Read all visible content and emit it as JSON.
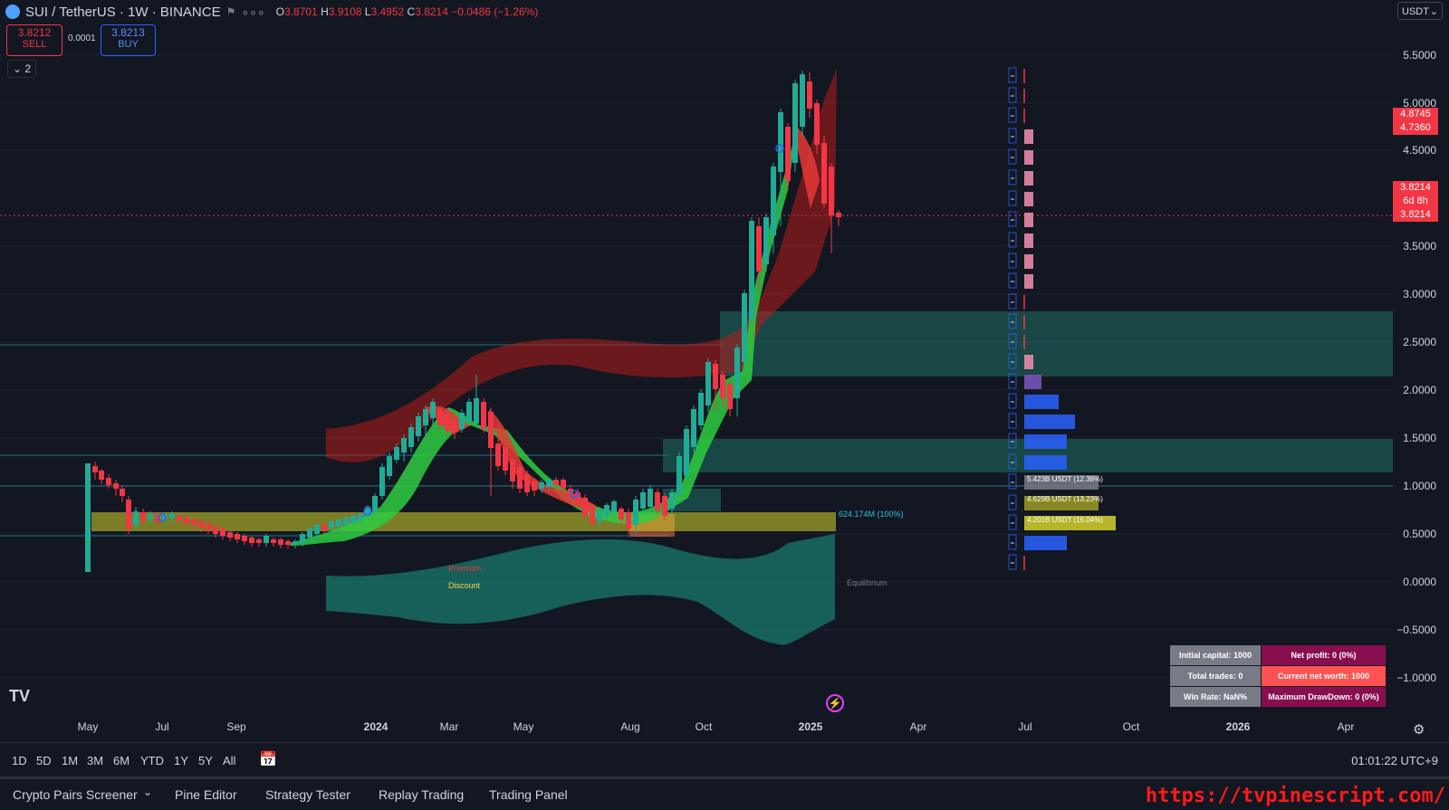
{
  "header": {
    "symbol": "SUI / TetherUS · 1W · BINANCE",
    "open_label": "O",
    "open": "3.8701",
    "high_label": "H",
    "high": "3.9108",
    "low_label": "L",
    "low": "3.4952",
    "close_label": "C",
    "close": "3.8214",
    "change": "−0.0486 (−1.26%)"
  },
  "trade": {
    "sell_price": "3.8212",
    "sell_label": "SELL",
    "spread": "0.0001",
    "buy_price": "3.8213",
    "buy_label": "BUY"
  },
  "collapse_count": "2",
  "currency": "USDT",
  "price_scale": [
    "5.5000",
    "5.0000",
    "4.5000",
    "3.5000",
    "3.0000",
    "2.5000",
    "2.0000",
    "1.5000",
    "1.0000",
    "0.5000",
    "0.0000",
    "−0.5000",
    "−1.0000"
  ],
  "price_tags": {
    "tag1": "4.8745",
    "tag2": "4.7360",
    "current": "3.8214",
    "countdown": "6d 8h",
    "current2": "3.8214"
  },
  "x_axis": [
    "May",
    "Jul",
    "Sep",
    "2024",
    "Mar",
    "May",
    "Aug",
    "Oct",
    "2025",
    "Apr",
    "Jul",
    "Oct",
    "2026",
    "Apr"
  ],
  "annotations": {
    "volume_poc": "624.174M (100%)",
    "premium": "Premium",
    "discount": "Discount",
    "equilibrium": "Equilibrium"
  },
  "volume_profile": [
    "5.423B USDT (12.38%)",
    "4.629B USDT (13.23%)",
    "4.201B USDT (16.04%)"
  ],
  "stats": {
    "initial_capital": "Initial capital: 1000",
    "net_profit": "Net profit: 0 (0%)",
    "total_trades": "Total trades: 0",
    "current_net_worth": "Current net worth: 1000",
    "win_rate": "Win Rate: NaN%",
    "max_drawdown": "Maximum DrawDown: 0 (0%)"
  },
  "timeframes": [
    "1D",
    "5D",
    "1M",
    "3M",
    "6M",
    "YTD",
    "1Y",
    "5Y",
    "All"
  ],
  "clock": "01:01:22 UTC+9",
  "bottom_tabs": [
    "Crypto Pairs Screener",
    "Pine Editor",
    "Strategy Tester",
    "Replay Trading",
    "Trading Panel"
  ],
  "watermark_url": "https://tvpinescript.com/",
  "colors": {
    "bull": "#22ab94",
    "bear": "#f23645",
    "zone": "#1f6f63",
    "poc": "#d4d22c"
  }
}
